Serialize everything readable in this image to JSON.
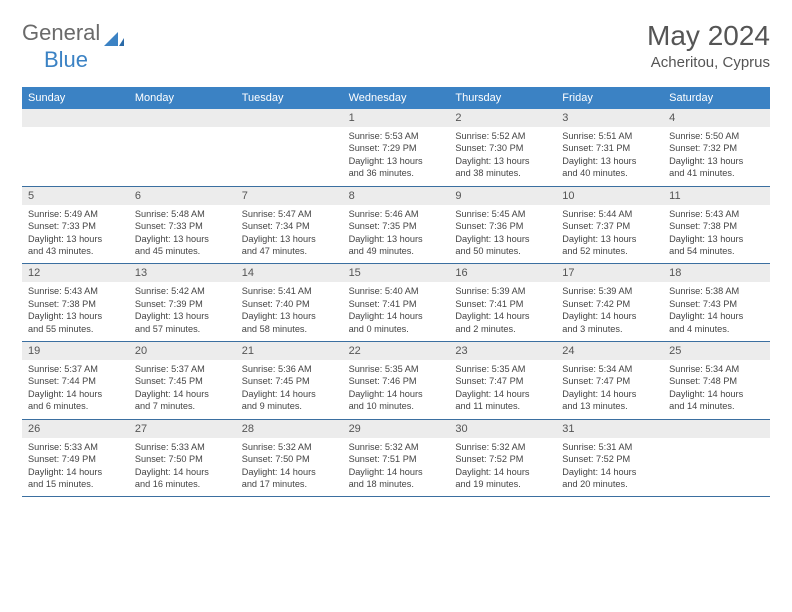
{
  "logo": {
    "part1": "General",
    "part2": "Blue"
  },
  "title": "May 2024",
  "subtitle": "Acheritou, Cyprus",
  "weekdays": [
    "Sunday",
    "Monday",
    "Tuesday",
    "Wednesday",
    "Thursday",
    "Friday",
    "Saturday"
  ],
  "colors": {
    "header_bg": "#3b82c4",
    "rule": "#3b6fa0",
    "daynum_bg": "#ececec"
  },
  "weeks": [
    [
      null,
      null,
      null,
      {
        "n": "1",
        "sr": "5:53 AM",
        "ss": "7:29 PM",
        "dl": "13 hours and 36 minutes."
      },
      {
        "n": "2",
        "sr": "5:52 AM",
        "ss": "7:30 PM",
        "dl": "13 hours and 38 minutes."
      },
      {
        "n": "3",
        "sr": "5:51 AM",
        "ss": "7:31 PM",
        "dl": "13 hours and 40 minutes."
      },
      {
        "n": "4",
        "sr": "5:50 AM",
        "ss": "7:32 PM",
        "dl": "13 hours and 41 minutes."
      }
    ],
    [
      {
        "n": "5",
        "sr": "5:49 AM",
        "ss": "7:33 PM",
        "dl": "13 hours and 43 minutes."
      },
      {
        "n": "6",
        "sr": "5:48 AM",
        "ss": "7:33 PM",
        "dl": "13 hours and 45 minutes."
      },
      {
        "n": "7",
        "sr": "5:47 AM",
        "ss": "7:34 PM",
        "dl": "13 hours and 47 minutes."
      },
      {
        "n": "8",
        "sr": "5:46 AM",
        "ss": "7:35 PM",
        "dl": "13 hours and 49 minutes."
      },
      {
        "n": "9",
        "sr": "5:45 AM",
        "ss": "7:36 PM",
        "dl": "13 hours and 50 minutes."
      },
      {
        "n": "10",
        "sr": "5:44 AM",
        "ss": "7:37 PM",
        "dl": "13 hours and 52 minutes."
      },
      {
        "n": "11",
        "sr": "5:43 AM",
        "ss": "7:38 PM",
        "dl": "13 hours and 54 minutes."
      }
    ],
    [
      {
        "n": "12",
        "sr": "5:43 AM",
        "ss": "7:38 PM",
        "dl": "13 hours and 55 minutes."
      },
      {
        "n": "13",
        "sr": "5:42 AM",
        "ss": "7:39 PM",
        "dl": "13 hours and 57 minutes."
      },
      {
        "n": "14",
        "sr": "5:41 AM",
        "ss": "7:40 PM",
        "dl": "13 hours and 58 minutes."
      },
      {
        "n": "15",
        "sr": "5:40 AM",
        "ss": "7:41 PM",
        "dl": "14 hours and 0 minutes."
      },
      {
        "n": "16",
        "sr": "5:39 AM",
        "ss": "7:41 PM",
        "dl": "14 hours and 2 minutes."
      },
      {
        "n": "17",
        "sr": "5:39 AM",
        "ss": "7:42 PM",
        "dl": "14 hours and 3 minutes."
      },
      {
        "n": "18",
        "sr": "5:38 AM",
        "ss": "7:43 PM",
        "dl": "14 hours and 4 minutes."
      }
    ],
    [
      {
        "n": "19",
        "sr": "5:37 AM",
        "ss": "7:44 PM",
        "dl": "14 hours and 6 minutes."
      },
      {
        "n": "20",
        "sr": "5:37 AM",
        "ss": "7:45 PM",
        "dl": "14 hours and 7 minutes."
      },
      {
        "n": "21",
        "sr": "5:36 AM",
        "ss": "7:45 PM",
        "dl": "14 hours and 9 minutes."
      },
      {
        "n": "22",
        "sr": "5:35 AM",
        "ss": "7:46 PM",
        "dl": "14 hours and 10 minutes."
      },
      {
        "n": "23",
        "sr": "5:35 AM",
        "ss": "7:47 PM",
        "dl": "14 hours and 11 minutes."
      },
      {
        "n": "24",
        "sr": "5:34 AM",
        "ss": "7:47 PM",
        "dl": "14 hours and 13 minutes."
      },
      {
        "n": "25",
        "sr": "5:34 AM",
        "ss": "7:48 PM",
        "dl": "14 hours and 14 minutes."
      }
    ],
    [
      {
        "n": "26",
        "sr": "5:33 AM",
        "ss": "7:49 PM",
        "dl": "14 hours and 15 minutes."
      },
      {
        "n": "27",
        "sr": "5:33 AM",
        "ss": "7:50 PM",
        "dl": "14 hours and 16 minutes."
      },
      {
        "n": "28",
        "sr": "5:32 AM",
        "ss": "7:50 PM",
        "dl": "14 hours and 17 minutes."
      },
      {
        "n": "29",
        "sr": "5:32 AM",
        "ss": "7:51 PM",
        "dl": "14 hours and 18 minutes."
      },
      {
        "n": "30",
        "sr": "5:32 AM",
        "ss": "7:52 PM",
        "dl": "14 hours and 19 minutes."
      },
      {
        "n": "31",
        "sr": "5:31 AM",
        "ss": "7:52 PM",
        "dl": "14 hours and 20 minutes."
      },
      null
    ]
  ],
  "labels": {
    "sunrise": "Sunrise:",
    "sunset": "Sunset:",
    "daylight": "Daylight:"
  }
}
